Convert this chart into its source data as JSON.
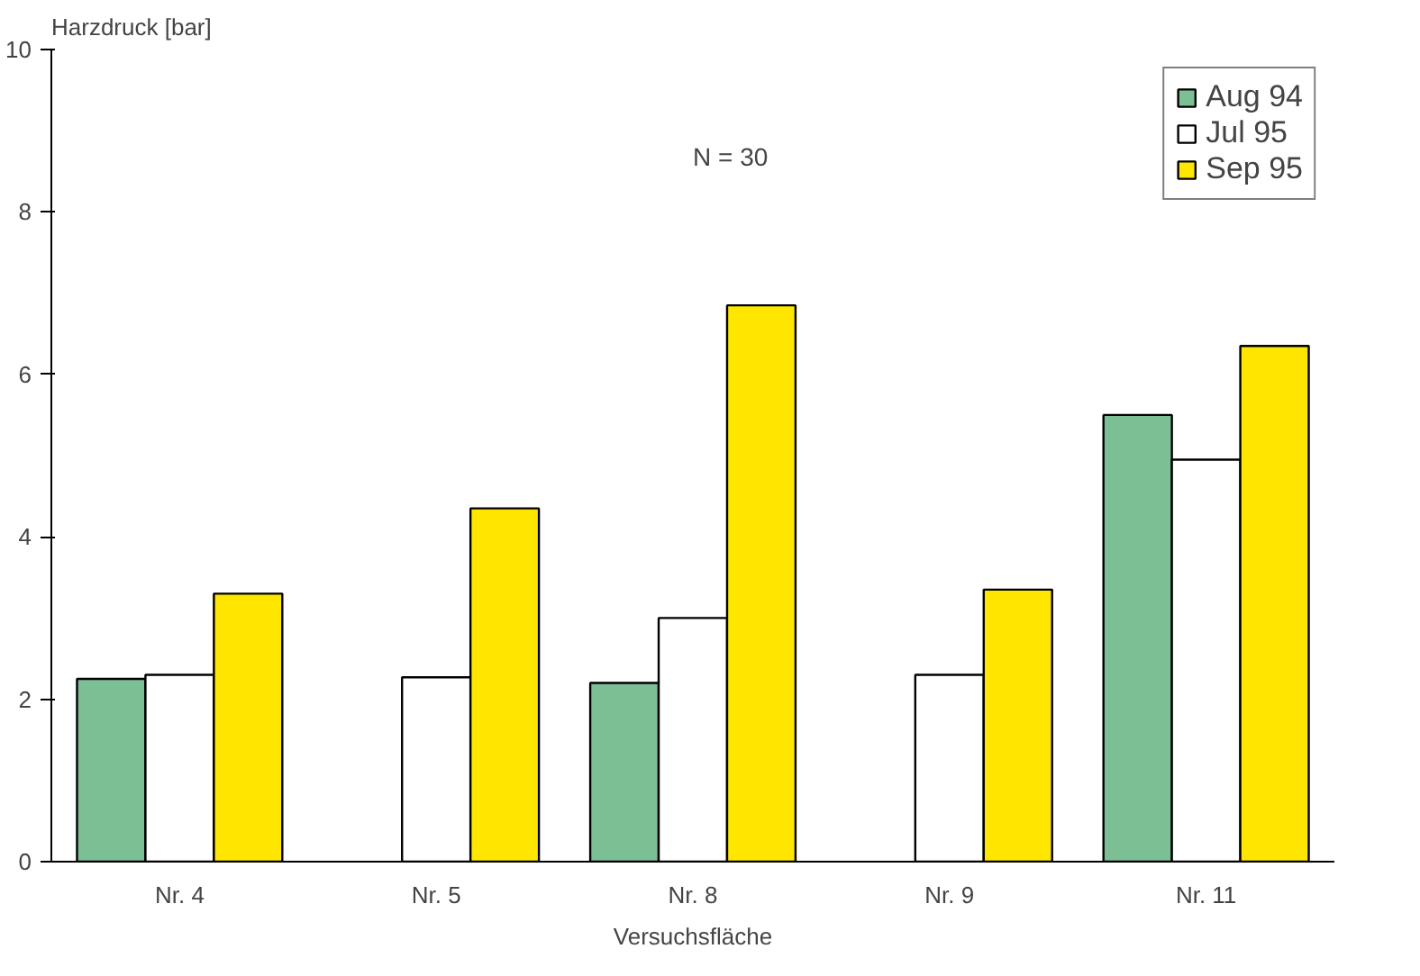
{
  "chart_data": {
    "type": "bar",
    "ylabel": "Harzdruck [bar]",
    "xlabel": "Versuchsfläche",
    "categories": [
      "Nr. 4",
      "Nr. 5",
      "Nr. 8",
      "Nr. 9",
      "Nr. 11"
    ],
    "series": [
      {
        "name": "Aug 94",
        "color": "#7dbf95",
        "values": [
          2.25,
          null,
          2.2,
          null,
          5.5
        ]
      },
      {
        "name": "Jul 95",
        "color": "#ffffff",
        "values": [
          2.3,
          2.27,
          3.0,
          2.3,
          4.95
        ]
      },
      {
        "name": "Sep 95",
        "color": "#ffe600",
        "values": [
          3.3,
          4.35,
          6.85,
          3.35,
          6.35
        ]
      }
    ],
    "ylim": [
      0,
      10
    ],
    "yticks": [
      0,
      2,
      4,
      6,
      8,
      10
    ],
    "grid": false,
    "legend": "top right",
    "annotations": [
      "N = 30"
    ]
  }
}
